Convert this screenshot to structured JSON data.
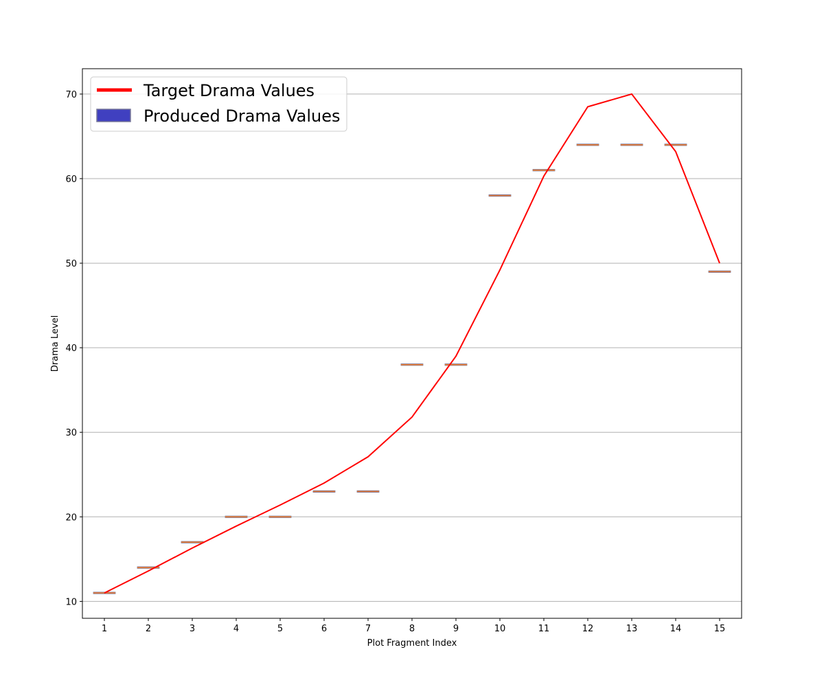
{
  "chart_data": {
    "type": "line",
    "xlabel": "Plot Fragment Index",
    "ylabel": "Drama Level",
    "x": [
      1,
      2,
      3,
      4,
      5,
      6,
      7,
      8,
      9,
      10,
      11,
      12,
      13,
      14,
      15
    ],
    "xlim": [
      0.5,
      15.5
    ],
    "ylim": [
      8,
      73
    ],
    "yticks": [
      10,
      20,
      30,
      40,
      50,
      60,
      70
    ],
    "grid": "horizontal",
    "legend_position": "top-left",
    "series": [
      {
        "name": "Target Drama Values",
        "kind": "line",
        "color": "#ff0000",
        "values": [
          11,
          13.6,
          16.3,
          18.9,
          21.4,
          24,
          27.1,
          31.8,
          39,
          49.2,
          60.3,
          68.5,
          70,
          63.2,
          50
        ]
      },
      {
        "name": "Produced Drama Values",
        "kind": "box",
        "color": "#4040c0",
        "line_color": "#f08030",
        "values": [
          11,
          14,
          17,
          20,
          20,
          23,
          23,
          38,
          38,
          58,
          61,
          64,
          64,
          64,
          49
        ]
      }
    ]
  }
}
